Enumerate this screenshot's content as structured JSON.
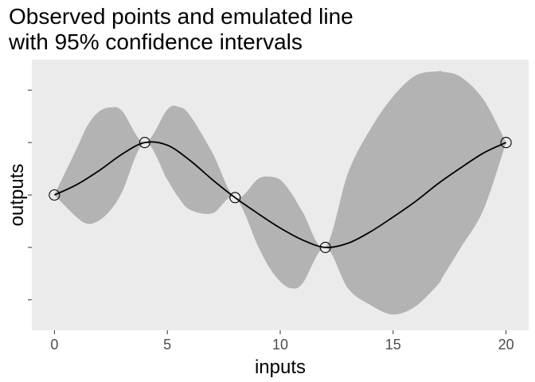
{
  "title_lines": [
    "Observed points and emulated line",
    "with 95% confidence intervals"
  ],
  "chart_data": {
    "type": "line",
    "title": "Observed points and emulated line with 95% confidence intervals",
    "xlabel": "inputs",
    "ylabel": "outputs",
    "xlim": [
      -1,
      21
    ],
    "ylim": [
      -2.58,
      2.58
    ],
    "x_ticks": [
      0,
      5,
      10,
      15,
      20
    ],
    "y_ticks": [
      -2,
      -1,
      0,
      1,
      2
    ],
    "y_tick_labels_shown": false,
    "grid": false,
    "legend": "none",
    "series": [
      {
        "kind": "ribbon",
        "x": [
          0,
          1,
          1.5,
          2,
          2.5,
          3,
          4,
          5,
          5.5,
          6,
          7,
          8,
          9,
          9.5,
          10,
          10.5,
          11,
          12,
          13,
          14,
          15,
          16,
          17,
          17.2,
          18,
          19,
          20
        ],
        "lower": [
          0,
          -0.43,
          -0.55,
          -0.48,
          -0.28,
          0.06,
          1.0,
          0.29,
          -0.05,
          -0.28,
          -0.35,
          -0.05,
          -0.96,
          -1.37,
          -1.65,
          -1.78,
          -1.68,
          -1.0,
          -1.78,
          -2.1,
          -2.28,
          -2.12,
          -1.7,
          -1.56,
          -1.0,
          -0.28,
          1.0
        ],
        "upper": [
          0,
          0.9,
          1.35,
          1.6,
          1.67,
          1.6,
          1.0,
          1.63,
          1.68,
          1.52,
          0.8,
          -0.05,
          0.3,
          0.35,
          0.29,
          0.03,
          -0.33,
          -1.0,
          0.42,
          1.26,
          1.88,
          2.28,
          2.36,
          2.35,
          2.25,
          1.82,
          1.0
        ]
      },
      {
        "kind": "line",
        "x": [
          0,
          1,
          2,
          3,
          4,
          5,
          6,
          7,
          8,
          9,
          10,
          11,
          12,
          13,
          14,
          15,
          16,
          17,
          18,
          19,
          20
        ],
        "y": [
          0,
          0.2,
          0.47,
          0.78,
          1.0,
          0.95,
          0.66,
          0.29,
          -0.05,
          -0.35,
          -0.63,
          -0.86,
          -1.0,
          -0.92,
          -0.7,
          -0.42,
          -0.12,
          0.22,
          0.52,
          0.8,
          1.0
        ]
      },
      {
        "kind": "points",
        "x": [
          0,
          4,
          8,
          12,
          20
        ],
        "y": [
          0,
          1,
          -0.05,
          -1,
          1
        ]
      }
    ],
    "colors": {
      "panel": "#ebebeb",
      "ribbon": "#b3b3b3",
      "line": "#000000",
      "points_stroke": "#000000",
      "tick": "#333333",
      "tick_label": "#4d4d4d"
    }
  }
}
